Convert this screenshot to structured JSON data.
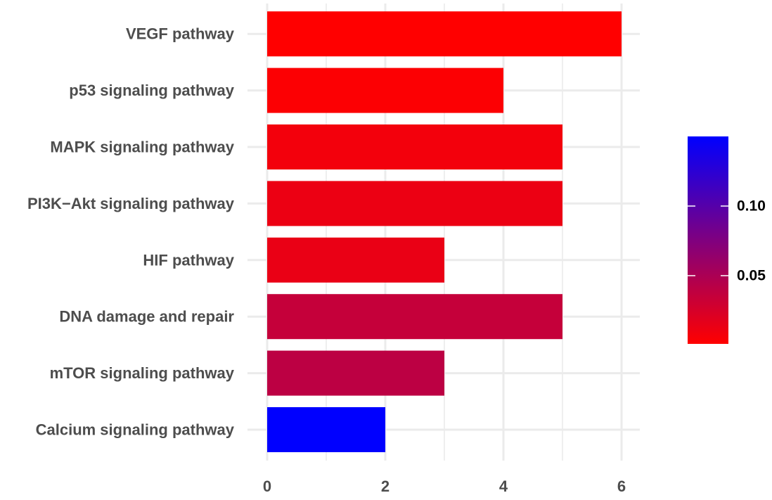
{
  "chart_data": {
    "type": "bar",
    "orientation": "horizontal",
    "categories": [
      "VEGF pathway",
      "p53 signaling pathway",
      "MAPK signaling pathway",
      "PI3K−Akt signaling pathway",
      "HIF pathway",
      "DNA damage and repair",
      "mTOR signaling pathway",
      "Calcium signaling pathway"
    ],
    "values": [
      6,
      4,
      5,
      5,
      3,
      5,
      3,
      2
    ],
    "color_values": [
      0.001,
      0.003,
      0.008,
      0.012,
      0.013,
      0.035,
      0.04,
      0.15
    ],
    "xlim": [
      0,
      6.1
    ],
    "x_ticks": [
      0,
      2,
      4,
      6
    ],
    "x_tick_labels": [
      "0",
      "2",
      "4",
      "6"
    ],
    "xlabel": "",
    "ylabel": "",
    "grid": true,
    "legend": {
      "position": "right",
      "type": "colorbar",
      "ticks": [
        0.05,
        0.1
      ],
      "tick_labels": [
        "0.05",
        "0.10"
      ],
      "range": [
        0.001,
        0.15
      ],
      "low_color": "#ff0000",
      "high_color": "#0000ff"
    }
  }
}
